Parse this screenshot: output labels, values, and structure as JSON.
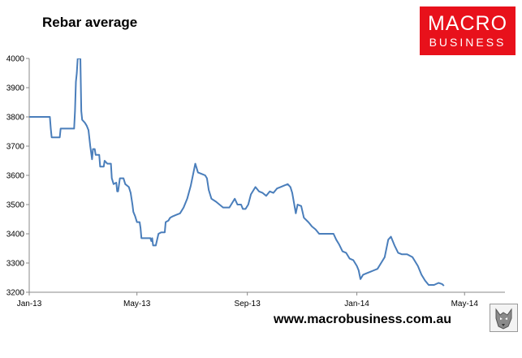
{
  "header": {
    "title": "Rebar average"
  },
  "logo": {
    "line1": "MACRO",
    "line2": "BUSINESS"
  },
  "footer": {
    "url": "www.macrobusiness.com.au"
  },
  "colors": {
    "line": "#4a7ebb",
    "axis": "#888888",
    "brand": "#e8111b"
  },
  "icons": {
    "footer": "wolf-emblem-icon"
  },
  "chart_data": {
    "type": "line",
    "title": "Rebar average",
    "xlabel": "",
    "ylabel": "",
    "ylim": [
      3200,
      4000
    ],
    "xlim": [
      "2013-01-01",
      "2014-06-15"
    ],
    "grid": false,
    "legend": "none",
    "yticks": [
      "3200",
      "3300",
      "3400",
      "3500",
      "3600",
      "3700",
      "3800",
      "3900",
      "4000"
    ],
    "xticks": [
      {
        "date": "2013-01-01",
        "label": "Jan-13"
      },
      {
        "date": "2013-05-01",
        "label": "May-13"
      },
      {
        "date": "2013-09-01",
        "label": "Sep-13"
      },
      {
        "date": "2014-01-01",
        "label": "Jan-14"
      },
      {
        "date": "2014-05-01",
        "label": "May-14"
      }
    ],
    "series": [
      {
        "points": [
          [
            "2013-01-01",
            3800
          ],
          [
            "2013-01-24",
            3800
          ],
          [
            "2013-01-25",
            3760
          ],
          [
            "2013-01-26",
            3730
          ],
          [
            "2013-02-04",
            3730
          ],
          [
            "2013-02-05",
            3760
          ],
          [
            "2013-02-20",
            3760
          ],
          [
            "2013-02-21",
            3820
          ],
          [
            "2013-02-22",
            3920
          ],
          [
            "2013-02-23",
            3950
          ],
          [
            "2013-02-24",
            4000
          ],
          [
            "2013-02-27",
            4000
          ],
          [
            "2013-02-28",
            3820
          ],
          [
            "2013-03-01",
            3790
          ],
          [
            "2013-03-04",
            3780
          ],
          [
            "2013-03-06",
            3770
          ],
          [
            "2013-03-08",
            3755
          ],
          [
            "2013-03-10",
            3700
          ],
          [
            "2013-03-12",
            3655
          ],
          [
            "2013-03-13",
            3690
          ],
          [
            "2013-03-15",
            3690
          ],
          [
            "2013-03-16",
            3670
          ],
          [
            "2013-03-20",
            3670
          ],
          [
            "2013-03-21",
            3630
          ],
          [
            "2013-03-25",
            3630
          ],
          [
            "2013-03-26",
            3650
          ],
          [
            "2013-03-29",
            3640
          ],
          [
            "2013-04-02",
            3640
          ],
          [
            "2013-04-03",
            3590
          ],
          [
            "2013-04-05",
            3570
          ],
          [
            "2013-04-08",
            3575
          ],
          [
            "2013-04-09",
            3545
          ],
          [
            "2013-04-10",
            3545
          ],
          [
            "2013-04-12",
            3590
          ],
          [
            "2013-04-16",
            3590
          ],
          [
            "2013-04-18",
            3570
          ],
          [
            "2013-04-22",
            3560
          ],
          [
            "2013-04-24",
            3540
          ],
          [
            "2013-04-26",
            3500
          ],
          [
            "2013-04-27",
            3475
          ],
          [
            "2013-04-29",
            3460
          ],
          [
            "2013-05-01",
            3440
          ],
          [
            "2013-05-04",
            3440
          ],
          [
            "2013-05-05",
            3420
          ],
          [
            "2013-05-06",
            3385
          ],
          [
            "2013-05-16",
            3385
          ],
          [
            "2013-05-17",
            3375
          ],
          [
            "2013-05-18",
            3385
          ],
          [
            "2013-05-19",
            3360
          ],
          [
            "2013-05-22",
            3360
          ],
          [
            "2013-05-25",
            3400
          ],
          [
            "2013-05-28",
            3405
          ],
          [
            "2013-06-01",
            3405
          ],
          [
            "2013-06-02",
            3440
          ],
          [
            "2013-06-05",
            3445
          ],
          [
            "2013-06-07",
            3455
          ],
          [
            "2013-06-10",
            3460
          ],
          [
            "2013-06-14",
            3465
          ],
          [
            "2013-06-18",
            3470
          ],
          [
            "2013-06-22",
            3490
          ],
          [
            "2013-06-26",
            3520
          ],
          [
            "2013-06-30",
            3565
          ],
          [
            "2013-07-03",
            3610
          ],
          [
            "2013-07-05",
            3640
          ],
          [
            "2013-07-08",
            3610
          ],
          [
            "2013-07-12",
            3605
          ],
          [
            "2013-07-16",
            3600
          ],
          [
            "2013-07-18",
            3590
          ],
          [
            "2013-07-20",
            3550
          ],
          [
            "2013-07-23",
            3520
          ],
          [
            "2013-07-28",
            3510
          ],
          [
            "2013-08-01",
            3500
          ],
          [
            "2013-08-05",
            3490
          ],
          [
            "2013-08-12",
            3490
          ],
          [
            "2013-08-14",
            3500
          ],
          [
            "2013-08-16",
            3510
          ],
          [
            "2013-08-18",
            3520
          ],
          [
            "2013-08-21",
            3500
          ],
          [
            "2013-08-25",
            3500
          ],
          [
            "2013-08-27",
            3485
          ],
          [
            "2013-08-30",
            3485
          ],
          [
            "2013-09-02",
            3500
          ],
          [
            "2013-09-05",
            3535
          ],
          [
            "2013-09-08",
            3550
          ],
          [
            "2013-09-10",
            3560
          ],
          [
            "2013-09-14",
            3545
          ],
          [
            "2013-09-18",
            3540
          ],
          [
            "2013-09-22",
            3530
          ],
          [
            "2013-09-26",
            3545
          ],
          [
            "2013-09-30",
            3540
          ],
          [
            "2013-10-04",
            3555
          ],
          [
            "2013-10-08",
            3560
          ],
          [
            "2013-10-12",
            3565
          ],
          [
            "2013-10-16",
            3570
          ],
          [
            "2013-10-19",
            3560
          ],
          [
            "2013-10-21",
            3540
          ],
          [
            "2013-10-23",
            3505
          ],
          [
            "2013-10-25",
            3470
          ],
          [
            "2013-10-27",
            3500
          ],
          [
            "2013-10-31",
            3495
          ],
          [
            "2013-11-03",
            3455
          ],
          [
            "2013-11-08",
            3440
          ],
          [
            "2013-11-12",
            3425
          ],
          [
            "2013-11-16",
            3415
          ],
          [
            "2013-11-20",
            3400
          ],
          [
            "2013-11-30",
            3400
          ],
          [
            "2013-12-06",
            3400
          ],
          [
            "2013-12-09",
            3380
          ],
          [
            "2013-12-12",
            3365
          ],
          [
            "2013-12-16",
            3340
          ],
          [
            "2013-12-20",
            3335
          ],
          [
            "2013-12-24",
            3315
          ],
          [
            "2013-12-28",
            3310
          ],
          [
            "2014-01-01",
            3290
          ],
          [
            "2014-01-03",
            3275
          ],
          [
            "2014-01-05",
            3245
          ],
          [
            "2014-01-08",
            3260
          ],
          [
            "2014-01-12",
            3265
          ],
          [
            "2014-01-16",
            3270
          ],
          [
            "2014-01-20",
            3275
          ],
          [
            "2014-01-24",
            3280
          ],
          [
            "2014-01-28",
            3300
          ],
          [
            "2014-02-01",
            3320
          ],
          [
            "2014-02-05",
            3380
          ],
          [
            "2014-02-08",
            3390
          ],
          [
            "2014-02-12",
            3360
          ],
          [
            "2014-02-16",
            3335
          ],
          [
            "2014-02-20",
            3330
          ],
          [
            "2014-02-26",
            3330
          ],
          [
            "2014-03-04",
            3320
          ],
          [
            "2014-03-10",
            3290
          ],
          [
            "2014-03-14",
            3260
          ],
          [
            "2014-03-18",
            3240
          ],
          [
            "2014-03-22",
            3225
          ],
          [
            "2014-03-28",
            3225
          ],
          [
            "2014-04-02",
            3232
          ],
          [
            "2014-04-06",
            3228
          ],
          [
            "2014-04-08",
            3222
          ]
        ]
      }
    ]
  }
}
